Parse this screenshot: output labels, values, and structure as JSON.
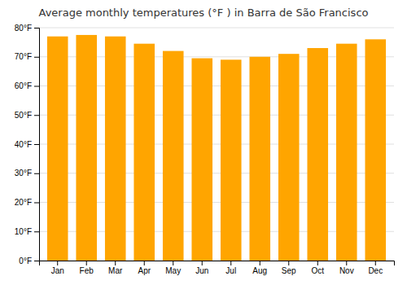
{
  "chart_data": {
    "type": "bar",
    "title": "Average monthly temperatures (°F ) in Barra de São Francisco",
    "categories": [
      "Jan",
      "Feb",
      "Mar",
      "Apr",
      "May",
      "Jun",
      "Jul",
      "Aug",
      "Sep",
      "Oct",
      "Nov",
      "Dec"
    ],
    "values": [
      77,
      77.5,
      77,
      74.5,
      72,
      69.5,
      69,
      70,
      71,
      73,
      74.5,
      76
    ],
    "color": "#FFA500",
    "ylim": [
      0,
      80
    ],
    "yticks": [
      {
        "value": 0,
        "label": "0°F"
      },
      {
        "value": 10,
        "label": "10°F"
      },
      {
        "value": 20,
        "label": "20°F"
      },
      {
        "value": 30,
        "label": "30°F"
      },
      {
        "value": 40,
        "label": "40°F"
      },
      {
        "value": 50,
        "label": "50°F"
      },
      {
        "value": 60,
        "label": "60°F"
      },
      {
        "value": 70,
        "label": "70°F"
      },
      {
        "value": 80,
        "label": "80°F"
      }
    ],
    "grid": true
  }
}
